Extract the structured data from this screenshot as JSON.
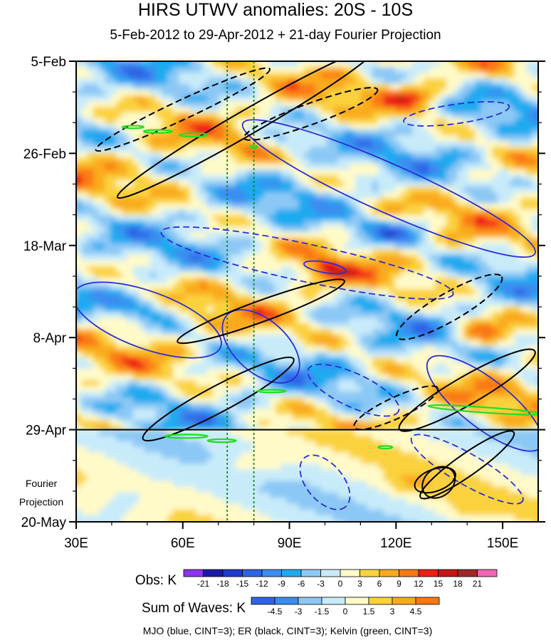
{
  "chart_data": {
    "type": "heatmap",
    "title": "HIRS UTWV anomalies: 20S - 10S",
    "subtitle": "5-Feb-2012 to 29-Apr-2012 + 21-day Fourier Projection",
    "x_axis": {
      "range": [
        30,
        160
      ],
      "ticks": [
        30,
        60,
        90,
        120,
        150
      ],
      "tick_labels": [
        "30E",
        "60E",
        "90E",
        "120E",
        "150E"
      ]
    },
    "y_axis": {
      "range_days": [
        0,
        105
      ],
      "ticks_days": [
        0,
        21,
        42,
        63,
        84,
        105
      ],
      "tick_labels": [
        "5-Feb",
        "26-Feb",
        "18-Mar",
        "8-Apr",
        "29-Apr",
        "20-May"
      ],
      "reversed": true
    },
    "projection": {
      "start_day": 84,
      "label_line1": "Fourier",
      "label_line2": "Projection"
    },
    "reference_lines_lon": [
      72.5,
      80
    ],
    "obs_colorbar": {
      "label": "Obs: K",
      "levels": [
        "-21",
        "-18",
        "-15",
        "-12",
        "-9",
        "-6",
        "-3",
        "0",
        "3",
        "6",
        "9",
        "12",
        "15",
        "18",
        "21"
      ],
      "colors": [
        "#8d33f0",
        "#1a1aa8",
        "#1e3cd2",
        "#2d64e6",
        "#3a8cf0",
        "#1eaaf0",
        "#8cc8f5",
        "#c8ebfa",
        "#fffac8",
        "#fad23c",
        "#faaa1e",
        "#fa7814",
        "#f01e14",
        "#c81414",
        "#a02828",
        "#f064b4"
      ]
    },
    "waves_colorbar": {
      "label": "Sum of Waves: K",
      "levels": [
        "-4.5",
        "-3",
        "-1.5",
        "0",
        "1.5",
        "3",
        "4.5"
      ],
      "colors": [
        "#2d64e6",
        "#3a8cf0",
        "#8cc8f5",
        "#c8ebfa",
        "#fffac8",
        "#fad23c",
        "#faaa1e",
        "#fa7814"
      ]
    },
    "contours_note": "MJO (blue, CINT=3); ER (black, CINT=3); Kelvin (green, CINT=3)",
    "mjo_color": "#2b2bd6",
    "er_color": "#000000",
    "kelvin_color": "#22dd22",
    "reference_line_color": "#138a13",
    "contours": {
      "mjo": [
        {
          "lon": 137,
          "day": 12,
          "rx": 15,
          "ry_days": 2.2,
          "angle": -8,
          "dashed": true
        },
        {
          "lon": 118,
          "day": 29,
          "rx": 45,
          "ry_days": 5.5,
          "angle": 24,
          "dashed": false
        },
        {
          "lon": 95,
          "day": 46,
          "rx": 42,
          "ry_days": 4.3,
          "angle": 12,
          "dashed": true
        },
        {
          "lon": 100,
          "day": 47,
          "rx": 6,
          "ry_days": 1.2,
          "angle": 10,
          "dashed": false
        },
        {
          "lon": 50,
          "day": 59,
          "rx": 22,
          "ry_days": 6.5,
          "angle": 20,
          "dashed": false
        },
        {
          "lon": 82,
          "day": 65,
          "rx": 13,
          "ry_days": 6.0,
          "angle": 42,
          "dashed": false
        },
        {
          "lon": 145,
          "day": 78,
          "rx": 20,
          "ry_days": 5.5,
          "angle": 38,
          "dashed": false
        },
        {
          "lon": 108,
          "day": 75,
          "rx": 14,
          "ry_days": 3.8,
          "angle": 25,
          "dashed": true
        },
        {
          "lon": 100,
          "day": 96,
          "rx": 9,
          "ry_days": 4.2,
          "angle": 50,
          "dashed": true
        },
        {
          "lon": 140,
          "day": 93,
          "rx": 18,
          "ry_days": 3.5,
          "angle": 30,
          "dashed": true
        }
      ],
      "er": [
        {
          "lon": 78,
          "day": 14,
          "rx": 42,
          "ry_days": 2.8,
          "angle": -30,
          "dashed": false
        },
        {
          "lon": 60,
          "day": 11,
          "rx": 27,
          "ry_days": 2.2,
          "angle": -25,
          "dashed": true
        },
        {
          "lon": 96,
          "day": 12,
          "rx": 20,
          "ry_days": 2.4,
          "angle": -20,
          "dashed": true
        },
        {
          "lon": 135,
          "day": 56,
          "rx": 17,
          "ry_days": 3.2,
          "angle": -30,
          "dashed": true
        },
        {
          "lon": 82,
          "day": 57,
          "rx": 25,
          "ry_days": 2.4,
          "angle": -20,
          "dashed": false
        },
        {
          "lon": 120,
          "day": 79,
          "rx": 13,
          "ry_days": 2.4,
          "angle": -25,
          "dashed": true
        },
        {
          "lon": 140,
          "day": 75,
          "rx": 22,
          "ry_days": 3.2,
          "angle": -30,
          "dashed": false
        },
        {
          "lon": 70,
          "day": 77,
          "rx": 24,
          "ry_days": 3.0,
          "angle": -28,
          "dashed": false
        },
        {
          "lon": 140,
          "day": 92,
          "rx": 16,
          "ry_days": 2.5,
          "angle": -35,
          "dashed": false
        },
        {
          "lon": 131,
          "day": 95.5,
          "rx": 6,
          "ry_days": 2.5,
          "angle": -20,
          "dashed": false
        },
        {
          "lon": 132,
          "day": 96,
          "rx": 5,
          "ry_days": 3.2,
          "angle": -40,
          "dashed": false
        }
      ],
      "kelvin": [
        {
          "lon": 46,
          "day": 15,
          "rx": 3,
          "ry_days": 0.3,
          "angle": 0,
          "dashed": false
        },
        {
          "lon": 53,
          "day": 16,
          "rx": 4,
          "ry_days": 0.35,
          "angle": 0,
          "dashed": false
        },
        {
          "lon": 63,
          "day": 16.8,
          "rx": 4,
          "ry_days": 0.4,
          "angle": 0,
          "dashed": false
        },
        {
          "lon": 80,
          "day": 19.5,
          "rx": 1,
          "ry_days": 0.3,
          "angle": 0,
          "dashed": false
        },
        {
          "lon": 85,
          "day": 75.2,
          "rx": 4,
          "ry_days": 0.3,
          "angle": 0,
          "dashed": false
        },
        {
          "lon": 145,
          "day": 79.5,
          "rx": 16,
          "ry_days": 0.6,
          "angle": 4,
          "dashed": false
        },
        {
          "lon": 61,
          "day": 85.5,
          "rx": 6,
          "ry_days": 0.4,
          "angle": 0,
          "dashed": false
        },
        {
          "lon": 71,
          "day": 86.5,
          "rx": 4,
          "ry_days": 0.35,
          "angle": 0,
          "dashed": false
        },
        {
          "lon": 117,
          "day": 88,
          "rx": 2,
          "ry_days": 0.3,
          "angle": 0,
          "dashed": false
        }
      ]
    }
  }
}
